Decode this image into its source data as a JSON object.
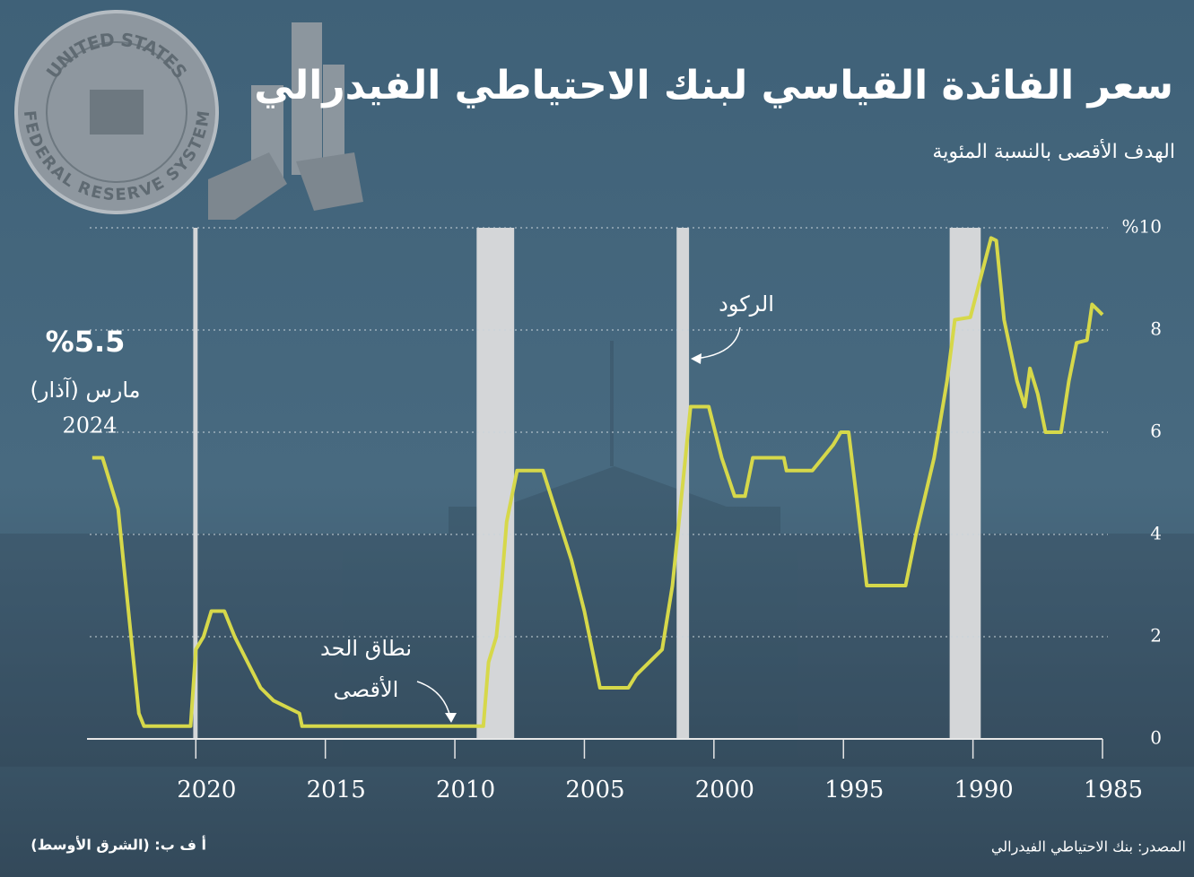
{
  "chart_data": {
    "type": "line",
    "title": "سعر الفائدة القياسي لبنك الاحتياطي الفيدرالي",
    "subtitle": "الهدف الأقصى بالنسبة المئوية",
    "x": [
      2024.0,
      2023.6,
      2023.3,
      2023.0,
      2022.8,
      2022.6,
      2022.4,
      2022.2,
      2022.0,
      2020.2,
      2020.0,
      2019.7,
      2019.4,
      2018.9,
      2018.5,
      2018.0,
      2017.5,
      2017.0,
      2016.0,
      2015.9,
      2008.9,
      2008.7,
      2008.4,
      2008.2,
      2008.0,
      2007.6,
      2006.6,
      2005.5,
      2005.0,
      2004.4,
      2003.3,
      2003.0,
      2002.0,
      2001.6,
      2001.3,
      2000.9,
      2000.2,
      1999.7,
      1999.2,
      1998.8,
      1998.5,
      1997.3,
      1997.2,
      1996.2,
      1995.4,
      1995.1,
      1994.8,
      1994.5,
      1994.1,
      1992.6,
      1992.2,
      1991.5,
      1991.0,
      1990.7,
      1990.1,
      1989.3,
      1989.1,
      1988.8,
      1988.3,
      1988.0,
      1987.8,
      1987.5,
      1987.2,
      1986.6,
      1986.3,
      1986.0,
      1985.6,
      1985.4,
      1985.2,
      1985.0
    ],
    "values": [
      5.5,
      5.5,
      5.0,
      4.5,
      3.5,
      2.5,
      1.5,
      0.5,
      0.25,
      0.25,
      1.75,
      2.0,
      2.5,
      2.5,
      2.0,
      1.5,
      1.0,
      0.75,
      0.5,
      0.25,
      0.25,
      1.5,
      2.0,
      3.0,
      4.25,
      5.25,
      5.25,
      3.5,
      2.5,
      1.0,
      1.0,
      1.25,
      1.75,
      3.0,
      4.5,
      6.5,
      6.5,
      5.5,
      4.75,
      4.75,
      5.5,
      5.5,
      5.25,
      5.25,
      5.75,
      6.0,
      6.0,
      4.75,
      3.0,
      3.0,
      4.0,
      5.5,
      7.0,
      8.2,
      8.25,
      9.8,
      9.75,
      8.2,
      7.0,
      6.5,
      7.25,
      6.75,
      6.0,
      6.0,
      7.0,
      7.75,
      7.8,
      8.5,
      8.4,
      8.3
    ],
    "color": "#d6d84a",
    "xlim": [
      2024.2,
      1985
    ],
    "xticks": [
      2020,
      2015,
      2010,
      2005,
      2000,
      1995,
      1990,
      1985
    ],
    "ylim": [
      0,
      10
    ],
    "yticks": [
      0,
      2,
      4,
      6,
      8,
      {
        "value": 10,
        "label": "%10"
      }
    ],
    "grid": true,
    "recessions": [
      [
        2020.1,
        2019.93
      ],
      [
        2009.16,
        2007.71
      ],
      [
        2001.44,
        2000.96
      ],
      [
        1990.9,
        1989.7
      ]
    ],
    "annotations": [
      "%5.5",
      "مارس (آذار)",
      "2024",
      "نطاق الحد",
      "الأقصى",
      "الركود"
    ]
  },
  "seal": [
    "UNITED STATES",
    "FEDERAL RESERVE SYSTEM"
  ],
  "footer": {
    "source": "المصدر: بنك الاحتياطي الفيدرالي",
    "credit": "أ ف ب: (الشرق الأوسط)"
  }
}
